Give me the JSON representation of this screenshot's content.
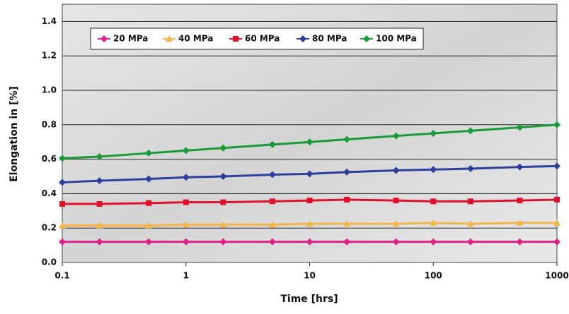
{
  "chart_data": {
    "type": "line",
    "x_label": "Time [hrs]",
    "y_label": "Elongation in [%]",
    "x": [
      0.1,
      0.2,
      0.5,
      1,
      2,
      5,
      10,
      20,
      50,
      100,
      200,
      500,
      1000
    ],
    "xscale": "log",
    "xlim": [
      0.1,
      1000
    ],
    "xticks": [
      0.1,
      1,
      10,
      100,
      1000
    ],
    "ylim": [
      0,
      1.5
    ],
    "yticks": [
      {
        "value": 0,
        "label": "0.0"
      },
      {
        "value": 0.2,
        "label": "0.2"
      },
      {
        "value": 0.4,
        "label": "0.4"
      },
      {
        "value": 0.6,
        "label": "0.6"
      },
      {
        "value": 0.8,
        "label": "0.8"
      },
      {
        "value": 1.0,
        "label": "1.0"
      },
      {
        "value": 1.2,
        "label": "1.2"
      },
      {
        "value": 1.4,
        "label": "1.4"
      }
    ],
    "grid": true,
    "legend": "top-left",
    "series": [
      {
        "name": "20 MPa",
        "color": "#e0208a",
        "marker": "diamond",
        "values": [
          0.12,
          0.12,
          0.12,
          0.12,
          0.12,
          0.12,
          0.12,
          0.12,
          0.12,
          0.12,
          0.12,
          0.12,
          0.12
        ]
      },
      {
        "name": "40 MPa",
        "color": "#f3b64c",
        "marker": "triangle",
        "values": [
          0.215,
          0.215,
          0.215,
          0.22,
          0.22,
          0.22,
          0.225,
          0.225,
          0.225,
          0.23,
          0.225,
          0.23,
          0.23
        ]
      },
      {
        "name": "60 MPa",
        "color": "#e0102a",
        "marker": "square",
        "values": [
          0.34,
          0.34,
          0.345,
          0.35,
          0.35,
          0.355,
          0.36,
          0.365,
          0.36,
          0.355,
          0.355,
          0.36,
          0.365
        ]
      },
      {
        "name": "80 MPa",
        "color": "#2e3f9b",
        "marker": "diamond",
        "values": [
          0.465,
          0.475,
          0.485,
          0.495,
          0.5,
          0.51,
          0.515,
          0.525,
          0.535,
          0.54,
          0.545,
          0.555,
          0.56
        ]
      },
      {
        "name": "100 MPa",
        "color": "#1a9a3a",
        "marker": "diamond",
        "values": [
          0.605,
          0.615,
          0.635,
          0.65,
          0.665,
          0.685,
          0.7,
          0.715,
          0.735,
          0.75,
          0.765,
          0.785,
          0.8
        ]
      }
    ]
  }
}
